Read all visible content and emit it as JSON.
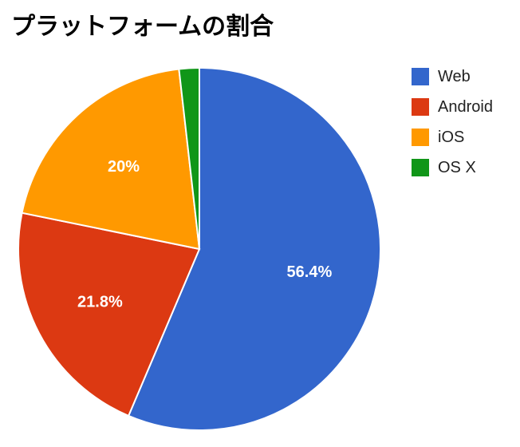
{
  "chart_data": {
    "type": "pie",
    "title": "プラットフォームの割合",
    "legend_position": "right",
    "slices": [
      {
        "name": "Web",
        "value": 56.4,
        "label": "56.4%",
        "color": "#3366cc"
      },
      {
        "name": "Android",
        "value": 21.8,
        "label": "21.8%",
        "color": "#dc3912"
      },
      {
        "name": "iOS",
        "value": 20.0,
        "label": "20%",
        "color": "#ff9900"
      },
      {
        "name": "OS X",
        "value": 1.8,
        "label": "",
        "color": "#109618"
      }
    ]
  }
}
